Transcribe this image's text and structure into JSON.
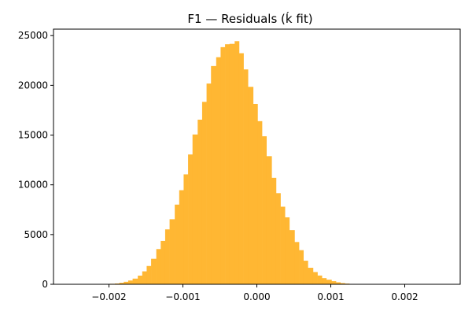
{
  "chart_data": {
    "type": "bar",
    "title": "F1 — Residuals (ḱ fit)",
    "xlabel": "",
    "ylabel": "",
    "xlim": [
      -0.00275,
      0.00275
    ],
    "ylim": [
      0,
      25650
    ],
    "x_ticks": [
      {
        "value": -0.002,
        "label": "−0.002"
      },
      {
        "value": -0.001,
        "label": "−0.001"
      },
      {
        "value": 0.0,
        "label": "0.000"
      },
      {
        "value": 0.001,
        "label": "0.001"
      },
      {
        "value": 0.002,
        "label": "0.002"
      }
    ],
    "y_ticks": [
      {
        "value": 0,
        "label": "0"
      },
      {
        "value": 5000,
        "label": "5000"
      },
      {
        "value": 10000,
        "label": "10000"
      },
      {
        "value": 15000,
        "label": "15000"
      },
      {
        "value": 20000,
        "label": "20000"
      },
      {
        "value": 25000,
        "label": "25000"
      }
    ],
    "bar_color": "#FFB733",
    "bin_edges": [
      -0.00199,
      -0.00192,
      -0.00186,
      -0.0018,
      -0.00174,
      -0.00168,
      -0.00161,
      -0.00155,
      -0.00149,
      -0.00143,
      -0.00136,
      -0.0013,
      -0.00124,
      -0.00118,
      -0.00111,
      -0.00105,
      -0.00099,
      -0.00093,
      -0.00087,
      -0.0008,
      -0.00074,
      -0.00068,
      -0.00062,
      -0.00055,
      -0.00049,
      -0.00043,
      -0.00037,
      -0.0003,
      -0.00024,
      -0.00018,
      -0.00012,
      -5e-05,
      1e-05,
      7e-05,
      0.00013,
      0.0002,
      0.00026,
      0.00032,
      0.00038,
      0.00044,
      0.00051,
      0.00057,
      0.00063,
      0.00069,
      0.00076,
      0.00082,
      0.00088,
      0.00094,
      0.00101,
      0.00107,
      0.00113,
      0.00119,
      0.00125,
      0.00132,
      0.00138,
      0.00144,
      0.0015,
      0.00157,
      0.00163,
      0.00169,
      0.00175,
      0.00182
    ],
    "values": [
      50,
      80,
      150,
      250,
      380,
      570,
      870,
      1300,
      1840,
      2560,
      3540,
      4360,
      5520,
      6540,
      8010,
      9460,
      11050,
      13050,
      15060,
      16550,
      18340,
      20180,
      21940,
      22830,
      23840,
      24130,
      24170,
      24440,
      23230,
      21600,
      19850,
      18130,
      16400,
      14880,
      12880,
      10700,
      9160,
      7800,
      6730,
      5450,
      4250,
      3430,
      2370,
      1660,
      1230,
      880,
      620,
      460,
      310,
      200,
      120,
      70,
      40,
      20,
      10,
      5,
      3,
      2,
      1,
      1,
      0
    ]
  }
}
